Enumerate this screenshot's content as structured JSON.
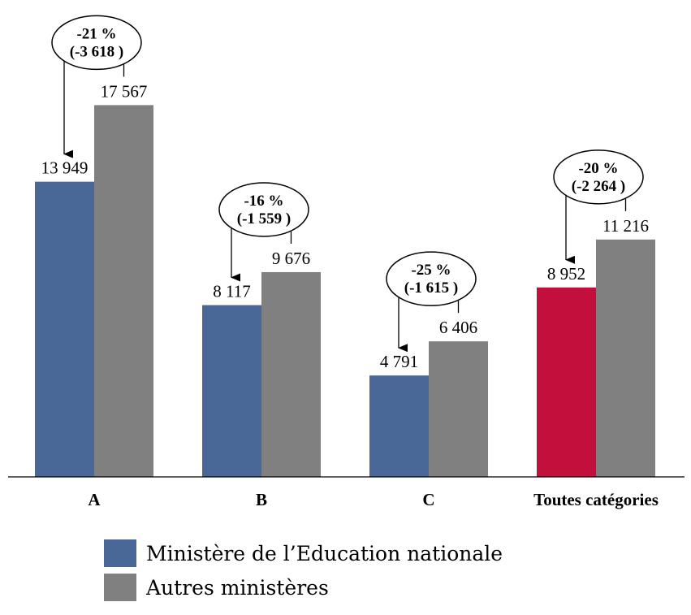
{
  "chart_data": {
    "type": "bar",
    "categories": [
      "A",
      "B",
      "C",
      "Toutes catégories"
    ],
    "series": [
      {
        "name": "Ministère de l’Education nationale",
        "values": [
          13949,
          8117,
          4791,
          8952
        ],
        "labels": [
          "13 949",
          "8 117",
          "4 791",
          "8 952"
        ],
        "color": "#4a6897",
        "highlight_color": "#c20f3c",
        "highlight_index": 3
      },
      {
        "name": "Autres ministères",
        "values": [
          17567,
          9676,
          6406,
          11216
        ],
        "labels": [
          "17 567",
          "9 676",
          "6 406",
          "11 216"
        ],
        "color": "#808080"
      }
    ],
    "annotations": [
      {
        "pct": "-21 %",
        "diff": "(-3 618 )"
      },
      {
        "pct": "-16 %",
        "diff": "(-1 559 )"
      },
      {
        "pct": "-25 %",
        "diff": "(-1 615 )"
      },
      {
        "pct": "-20 %",
        "diff": "(-2 264 )"
      }
    ],
    "ylim": [
      0,
      20000
    ],
    "grid": false,
    "legend_position": "bottom-left"
  }
}
